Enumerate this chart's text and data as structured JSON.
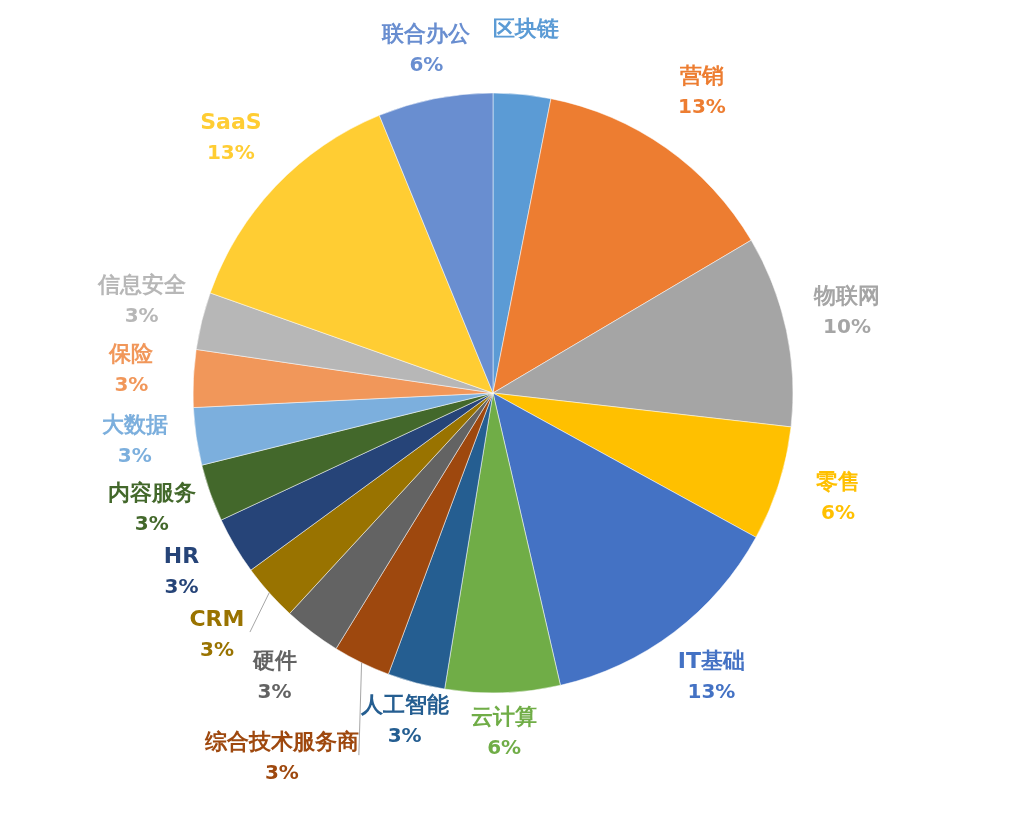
{
  "chart_data": {
    "type": "pie",
    "categories": [
      "区块链",
      "营销",
      "物联网",
      "零售",
      "IT基础",
      "云计算",
      "人工智能",
      "综合技术服务商",
      "硬件",
      "CRM",
      "HR",
      "内容服务",
      "大数据",
      "保险",
      "信息安全",
      "SaaS",
      "联合办公"
    ],
    "values": [
      3,
      13,
      10,
      6,
      13,
      6,
      3,
      3,
      3,
      3,
      3,
      3,
      3,
      3,
      3,
      13,
      6
    ],
    "value_labels": [
      null,
      "13%",
      "10%",
      "6%",
      "13%",
      "6%",
      "3%",
      "3%",
      "3%",
      "3%",
      "3%",
      "3%",
      "3%",
      "3%",
      "3%",
      "13%",
      "6%"
    ],
    "colors": [
      "#5b9bd5",
      "#ed7d31",
      "#a5a5a5",
      "#ffc000",
      "#4472c4",
      "#70ad47",
      "#255e91",
      "#9e480e",
      "#636363",
      "#997300",
      "#264478",
      "#43682b",
      "#7cafdd",
      "#f1975a",
      "#b7b7b7",
      "#ffcd33",
      "#698ed0"
    ]
  }
}
